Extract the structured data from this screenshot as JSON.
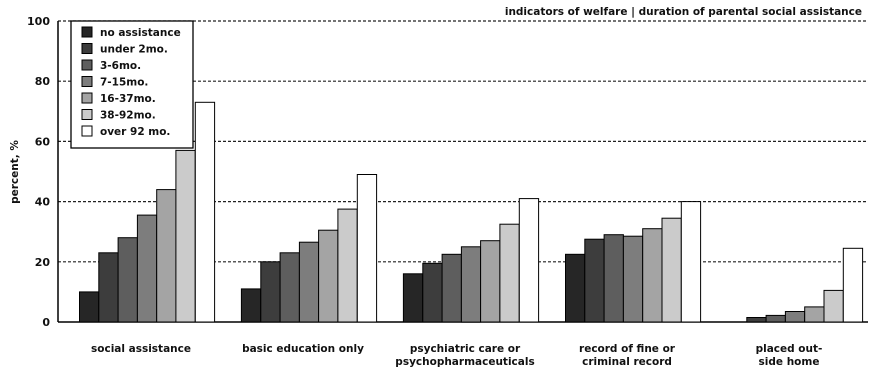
{
  "chart_data": {
    "type": "bar",
    "title": "indicators of welfare | duration of parental social assistance",
    "xlabel": "",
    "ylabel": "percent, %",
    "ylim": [
      0,
      100
    ],
    "yticks": [
      0,
      20,
      40,
      60,
      80,
      100
    ],
    "grid": true,
    "legend_position": "top-left",
    "categories": [
      [
        "social assistance"
      ],
      [
        "basic education only"
      ],
      [
        "psychiatric care or",
        "psychopharmaceuticals"
      ],
      [
        "record of fine or",
        "criminal record"
      ],
      [
        "placed out-",
        "side home"
      ]
    ],
    "series": [
      {
        "name": "no assistance",
        "color": "#262626",
        "values": [
          10,
          11,
          16,
          22.5,
          0
        ]
      },
      {
        "name": "under 2mo.",
        "color": "#3d3d3d",
        "values": [
          23,
          20,
          19.5,
          27.5,
          1.5
        ]
      },
      {
        "name": "3-6mo.",
        "color": "#5e5e5e",
        "values": [
          28,
          23,
          22.5,
          29,
          2.2
        ]
      },
      {
        "name": "7-15mo.",
        "color": "#7d7d7d",
        "values": [
          35.5,
          26.5,
          25,
          28.5,
          3.5
        ]
      },
      {
        "name": "16-37mo.",
        "color": "#a4a4a4",
        "values": [
          44,
          30.5,
          27,
          31,
          5
        ]
      },
      {
        "name": "38-92mo.",
        "color": "#cbcbcb",
        "values": [
          57,
          37.5,
          32.5,
          34.5,
          10.5
        ]
      },
      {
        "name": "over 92 mo.",
        "color": "#ffffff",
        "values": [
          73,
          49,
          41,
          40,
          24.5
        ]
      }
    ]
  }
}
